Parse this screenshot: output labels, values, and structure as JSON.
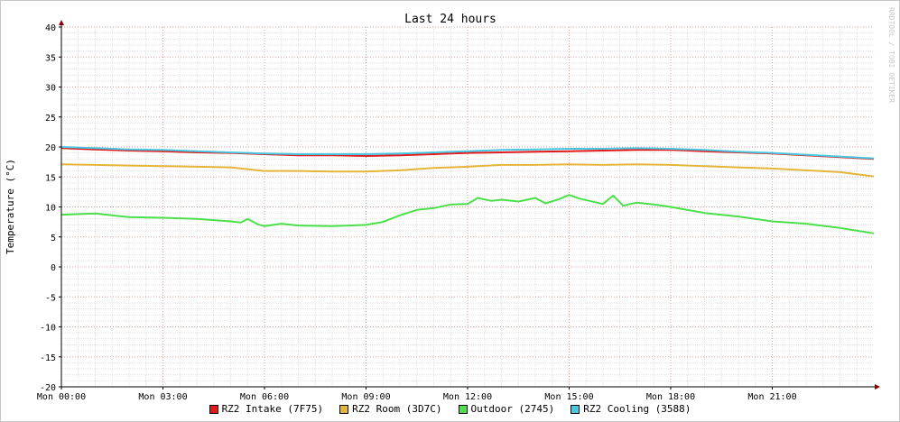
{
  "watermark": "RRDTOOL / TOBI OETIKER",
  "colors": {
    "grid_minor": "#e0e0e0",
    "grid_major": "#e6a0a0",
    "axis": "#000000",
    "arrow": "#880000"
  },
  "chart_data": {
    "type": "line",
    "title": "Last 24 hours",
    "ylabel": "Temperature (°C)",
    "xlabel": "",
    "ylim": [
      -20,
      40
    ],
    "xlim": [
      0,
      24
    ],
    "y_ticks": [
      -20,
      -15,
      -10,
      -5,
      0,
      5,
      10,
      15,
      20,
      25,
      30,
      35,
      40
    ],
    "x_ticks": [
      {
        "hour": 0,
        "label": "Mon 00:00"
      },
      {
        "hour": 3,
        "label": "Mon 03:00"
      },
      {
        "hour": 6,
        "label": "Mon 06:00"
      },
      {
        "hour": 9,
        "label": "Mon 09:00"
      },
      {
        "hour": 12,
        "label": "Mon 12:00"
      },
      {
        "hour": 15,
        "label": "Mon 15:00"
      },
      {
        "hour": 18,
        "label": "Mon 18:00"
      },
      {
        "hour": 21,
        "label": "Mon 21:00"
      }
    ],
    "grid": true,
    "legend_position": "bottom",
    "series": [
      {
        "name": "RZ2 Intake (7F75)",
        "color": "#e31a1c",
        "x": [
          0,
          1,
          2,
          3,
          4,
          5,
          6,
          7,
          8,
          9,
          10,
          11,
          12,
          13,
          14,
          15,
          16,
          17,
          18,
          19,
          20,
          21,
          22,
          23,
          24
        ],
        "y": [
          19.8,
          19.6,
          19.4,
          19.3,
          19.1,
          19.0,
          18.8,
          18.6,
          18.6,
          18.5,
          18.6,
          18.8,
          19.0,
          19.1,
          19.2,
          19.3,
          19.4,
          19.5,
          19.5,
          19.3,
          19.1,
          18.9,
          18.6,
          18.3,
          18.0
        ]
      },
      {
        "name": "RZ2 Room (3D7C)",
        "color": "#e5b53a",
        "x": [
          0,
          1,
          2,
          3,
          4,
          5,
          6,
          7,
          8,
          9,
          10,
          11,
          12,
          13,
          14,
          15,
          16,
          17,
          18,
          19,
          20,
          21,
          22,
          23,
          24
        ],
        "y": [
          17.1,
          17.0,
          16.9,
          16.8,
          16.7,
          16.6,
          16.0,
          16.0,
          15.9,
          15.9,
          16.1,
          16.5,
          16.7,
          17.0,
          17.0,
          17.1,
          17.0,
          17.1,
          17.0,
          16.8,
          16.6,
          16.4,
          16.1,
          15.8,
          15.1
        ]
      },
      {
        "name": "Outdoor (2745)",
        "color": "#4bdf4b",
        "x": [
          0,
          1,
          1.5,
          2,
          3,
          4,
          5,
          5.3,
          5.5,
          5.8,
          6,
          6.5,
          7,
          8,
          9,
          9.5,
          10,
          10.5,
          11,
          11.5,
          12,
          12.3,
          12.7,
          13,
          13.5,
          14,
          14.3,
          14.7,
          15,
          15.3,
          15.6,
          16,
          16.3,
          16.6,
          16.8,
          17,
          17.5,
          18,
          19,
          20,
          21,
          22,
          23,
          24
        ],
        "y": [
          8.7,
          8.9,
          8.6,
          8.3,
          8.2,
          8.0,
          7.6,
          7.4,
          8.0,
          7.1,
          6.8,
          7.2,
          6.9,
          6.8,
          7.0,
          7.5,
          8.6,
          9.5,
          9.8,
          10.4,
          10.5,
          11.5,
          11.0,
          11.2,
          10.9,
          11.5,
          10.6,
          11.3,
          12.0,
          11.4,
          11.0,
          10.5,
          11.9,
          10.2,
          10.5,
          10.7,
          10.4,
          10.0,
          9.0,
          8.4,
          7.6,
          7.2,
          6.5,
          5.6
        ]
      },
      {
        "name": "RZ2 Cooling (3588)",
        "color": "#47c8e0",
        "x": [
          0,
          1,
          2,
          3,
          4,
          5,
          6,
          7,
          8,
          9,
          10,
          11,
          12,
          13,
          14,
          15,
          16,
          17,
          18,
          19,
          20,
          21,
          22,
          23,
          24
        ],
        "y": [
          20.0,
          19.8,
          19.6,
          19.5,
          19.3,
          19.1,
          18.9,
          18.8,
          18.8,
          18.8,
          18.9,
          19.1,
          19.3,
          19.5,
          19.6,
          19.7,
          19.7,
          19.8,
          19.7,
          19.5,
          19.2,
          19.0,
          18.7,
          18.4,
          18.1
        ]
      }
    ]
  }
}
